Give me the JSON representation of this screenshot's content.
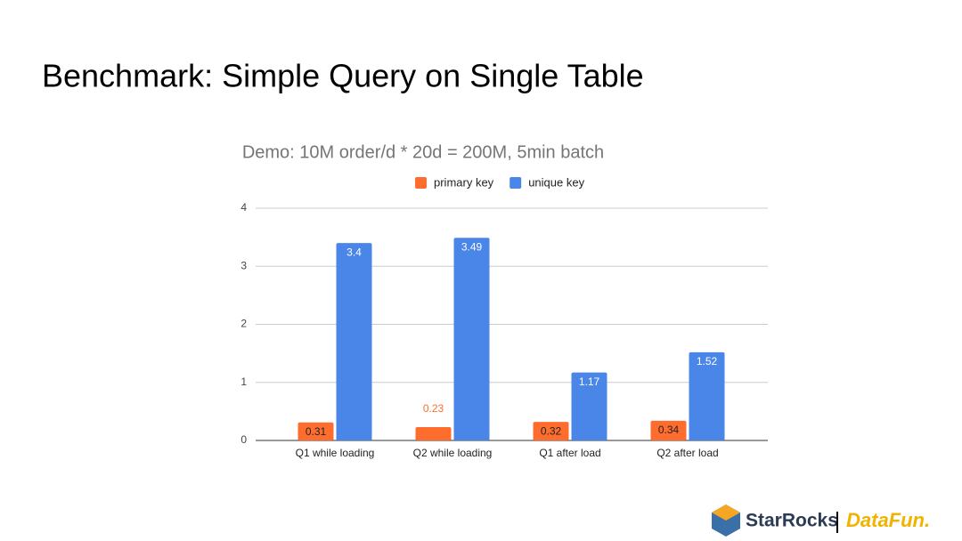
{
  "slide_title": "Benchmark: Simple Query on Single Table",
  "chart_data": {
    "type": "bar",
    "title": "Demo: 10M order/d * 20d = 200M, 5min batch",
    "categories": [
      "Q1 while loading",
      "Q2 while loading",
      "Q1 after load",
      "Q2 after load"
    ],
    "series": [
      {
        "name": "primary key",
        "color": "#ff6d2e",
        "values": [
          0.31,
          0.23,
          0.32,
          0.34
        ]
      },
      {
        "name": "unique key",
        "color": "#4a86e8",
        "values": [
          3.4,
          3.49,
          1.17,
          1.52
        ]
      }
    ],
    "ylim": [
      0,
      4
    ],
    "yticks": [
      0,
      1,
      2,
      3,
      4
    ],
    "grid": true,
    "legend": "top"
  },
  "footer": {
    "logo_left": "StarRocks",
    "logo_right": "DataFun."
  }
}
